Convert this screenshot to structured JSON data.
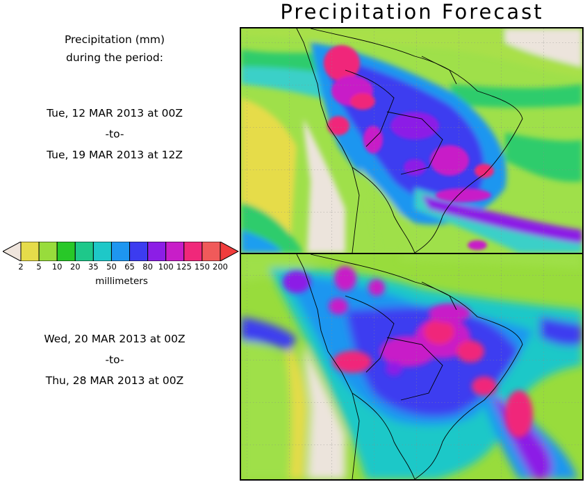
{
  "title": "Precipitation Forecast",
  "legend_header": {
    "line1": "Precipitation (mm)",
    "line2": "during the period:"
  },
  "period1": {
    "start": "Tue, 12 MAR 2013 at 00Z",
    "sep": "-to-",
    "end": "Tue, 19 MAR 2013 at 12Z"
  },
  "period2": {
    "start": "Wed, 20 MAR 2013 at 00Z",
    "sep": "-to-",
    "end": "Thu, 28 MAR 2013 at 00Z"
  },
  "colorbar": {
    "ticks": [
      "2",
      "5",
      "10",
      "20",
      "35",
      "50",
      "65",
      "80",
      "100",
      "125",
      "150",
      "200"
    ],
    "colors": [
      "#e6dc4a",
      "#98dc3c",
      "#28c828",
      "#1ec88a",
      "#1ec8c8",
      "#1e96f0",
      "#3c3cf0",
      "#8c1ee6",
      "#c81ec8",
      "#f0287a",
      "#f05a5a"
    ],
    "low_color": "#efe5dd",
    "high_color": "#f03c3c",
    "unit": "millimeters"
  }
}
